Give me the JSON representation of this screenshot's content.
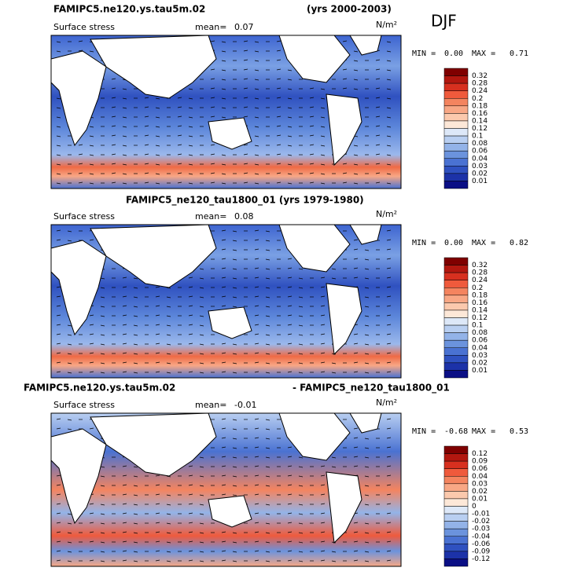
{
  "header": {
    "title": "FAMIPC5.ne120.ys.tau5m.02",
    "years": "(yrs 2000-2003)",
    "season": "DJF"
  },
  "panels": [
    {
      "label": "Surface stress",
      "mean_label": "mean=",
      "mean": "0.07",
      "units": "N/m²",
      "min_label": "MIN =",
      "min": "0.00",
      "max_label": "MAX =",
      "max": "0.71",
      "colorbar": [
        "0.32",
        "0.28",
        "0.24",
        "0.2",
        "0.18",
        "0.16",
        "0.14",
        "0.12",
        "0.1",
        "0.08",
        "0.06",
        "0.04",
        "0.03",
        "0.02",
        "0.01"
      ]
    },
    {
      "title": "FAMIPC5_ne120_tau1800_01 (yrs 1979-1980)",
      "label": "Surface stress",
      "mean_label": "mean=",
      "mean": "0.08",
      "units": "N/m²",
      "min_label": "MIN =",
      "min": "0.00",
      "max_label": "MAX =",
      "max": "0.82",
      "colorbar": [
        "0.32",
        "0.28",
        "0.24",
        "0.2",
        "0.18",
        "0.16",
        "0.14",
        "0.12",
        "0.1",
        "0.08",
        "0.06",
        "0.04",
        "0.03",
        "0.02",
        "0.01"
      ]
    },
    {
      "title_left": "FAMIPC5.ne120.ys.tau5m.02",
      "title_right": "- FAMIPC5_ne120_tau1800_01",
      "label": "Surface stress",
      "mean_label": "mean=",
      "mean": "-0.01",
      "units": "N/m²",
      "min_label": "MIN =",
      "min": "-0.68",
      "max_label": "MAX =",
      "max": "0.53",
      "colorbar": [
        "0.12",
        "0.09",
        "0.06",
        "0.04",
        "0.03",
        "0.02",
        "0.01",
        "0",
        "-0.01",
        "-0.02",
        "-0.03",
        "-0.04",
        "-0.06",
        "-0.09",
        "-0.12"
      ]
    }
  ]
}
